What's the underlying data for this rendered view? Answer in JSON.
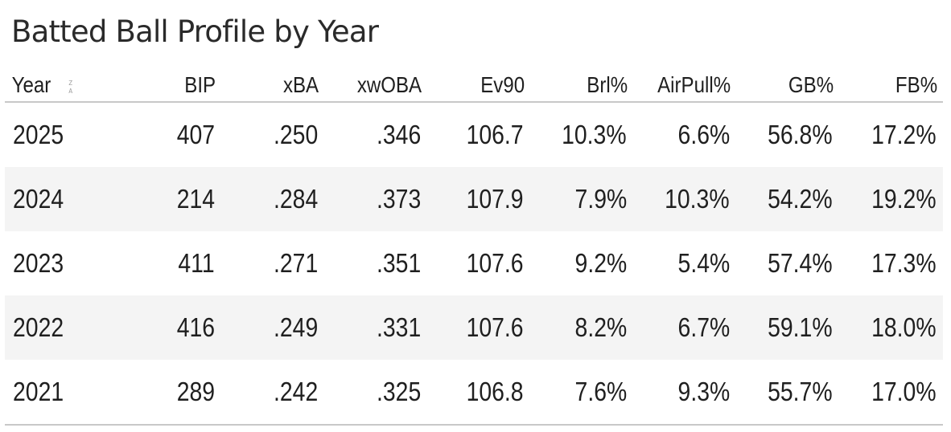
{
  "title": "Batted Ball Profile by Year",
  "table": {
    "columns": [
      "Year",
      "BIP",
      "xBA",
      "xwOBA",
      "Ev90",
      "Brl%",
      "AirPull%",
      "GB%",
      "FB%"
    ],
    "sort_icon": "sort-z-a-icon",
    "rows": [
      [
        "2025",
        "407",
        ".250",
        ".346",
        "106.7",
        "10.3%",
        "6.6%",
        "56.8%",
        "17.2%"
      ],
      [
        "2024",
        "214",
        ".284",
        ".373",
        "107.9",
        "7.9%",
        "10.3%",
        "54.2%",
        "19.2%"
      ],
      [
        "2023",
        "411",
        ".271",
        ".351",
        "107.6",
        "9.2%",
        "5.4%",
        "57.4%",
        "17.3%"
      ],
      [
        "2022",
        "416",
        ".249",
        ".331",
        "107.6",
        "8.2%",
        "6.7%",
        "59.1%",
        "18.0%"
      ],
      [
        "2021",
        "289",
        ".242",
        ".325",
        "106.8",
        "7.6%",
        "9.3%",
        "55.7%",
        "17.0%"
      ]
    ]
  },
  "colors": {
    "text": "#1f1f1f",
    "stripe": "#f4f4f4",
    "rule": "#c8c8c8",
    "sort_icon": "#9a9a9a"
  }
}
